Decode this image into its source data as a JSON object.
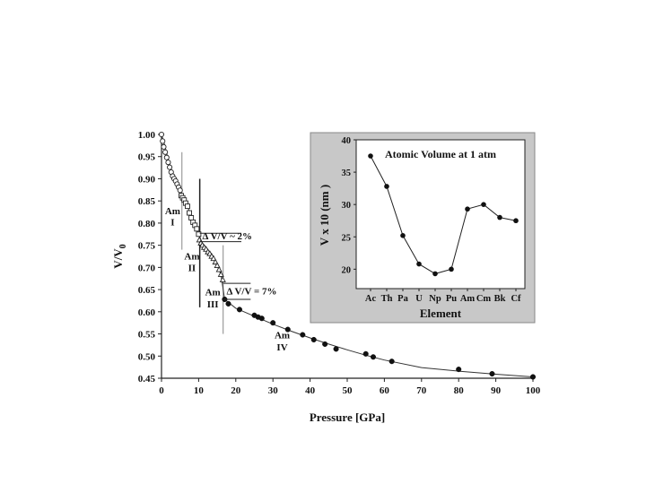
{
  "chart_data": [
    {
      "type": "scatter",
      "xlabel": "Pressure [GPa]",
      "ylabel_main": "V/V",
      "ylabel_sub": "0",
      "xlim": [
        0,
        100
      ],
      "ylim": [
        0.45,
        1.0
      ],
      "xticks": [
        "0",
        "10",
        "20",
        "30",
        "40",
        "50",
        "60",
        "70",
        "80",
        "90",
        "100"
      ],
      "yticks": [
        "0.45",
        "0.50",
        "0.55",
        "0.60",
        "0.65",
        "0.70",
        "0.75",
        "0.80",
        "0.85",
        "0.90",
        "0.95",
        "1.00"
      ],
      "series": [
        {
          "marker": "open-circle",
          "x": [
            0,
            0.3,
            0.6,
            1.0,
            1.4,
            1.8,
            2.2,
            2.6,
            3.0,
            3.4,
            3.8,
            4.2,
            4.6,
            5.0
          ],
          "y": [
            1.0,
            0.985,
            0.972,
            0.96,
            0.948,
            0.937,
            0.926,
            0.915,
            0.906,
            0.9,
            0.895,
            0.888,
            0.881,
            0.874
          ]
        },
        {
          "marker": "open-square",
          "x": [
            5.3,
            5.7,
            6.1,
            6.5,
            7.0,
            7.5,
            8.0,
            8.5,
            9.0,
            9.5,
            10.0
          ],
          "y": [
            0.862,
            0.857,
            0.852,
            0.845,
            0.838,
            0.823,
            0.812,
            0.802,
            0.795,
            0.787,
            0.775
          ]
        },
        {
          "marker": "open-triangle",
          "x": [
            10.2,
            10.6,
            11.0,
            11.5,
            12.0,
            12.5,
            13.0,
            13.5,
            14.0,
            14.5,
            15.0,
            15.5,
            16.0,
            16.5
          ],
          "y": [
            0.762,
            0.755,
            0.75,
            0.745,
            0.741,
            0.735,
            0.731,
            0.725,
            0.72,
            0.712,
            0.704,
            0.695,
            0.684,
            0.672
          ]
        },
        {
          "marker": "filled-circle",
          "x": [
            17.0,
            18.0,
            21.0,
            25.0,
            26.0,
            27.0,
            30.0,
            34.0,
            38.0,
            41.0,
            44.0,
            47.0,
            55.0,
            57.0,
            62.0,
            80.0,
            89.0,
            100.0
          ],
          "y": [
            0.628,
            0.618,
            0.605,
            0.592,
            0.588,
            0.585,
            0.575,
            0.56,
            0.548,
            0.537,
            0.527,
            0.516,
            0.505,
            0.498,
            0.488,
            0.47,
            0.46,
            0.453
          ]
        }
      ],
      "fit_curve": {
        "x": [
          0,
          1,
          2,
          3,
          4,
          5,
          6,
          7,
          8,
          9,
          10,
          11,
          12,
          13,
          14,
          15,
          16,
          17,
          20,
          25,
          30,
          35,
          40,
          45,
          50,
          55,
          60,
          70,
          80,
          90,
          100
        ],
        "y": [
          1.0,
          0.972,
          0.935,
          0.905,
          0.888,
          0.872,
          0.855,
          0.838,
          0.815,
          0.795,
          0.775,
          0.755,
          0.742,
          0.731,
          0.72,
          0.704,
          0.684,
          0.628,
          0.608,
          0.59,
          0.572,
          0.556,
          0.541,
          0.527,
          0.514,
          0.502,
          0.491,
          0.474,
          0.466,
          0.459,
          0.453
        ]
      },
      "annotations": {
        "am_i": [
          "Am",
          "I"
        ],
        "am_ii": [
          "Am",
          "II"
        ],
        "am_iii": [
          "Am",
          "III"
        ],
        "am_iv": [
          "Am",
          "IV"
        ],
        "delta_1": "Δ V/V ~ 2%",
        "delta_2": "Δ V/V = 7%"
      }
    },
    {
      "type": "line",
      "title": "Atomic Volume at 1 atm",
      "xlabel": "Element",
      "ylabel": "V x 10 (nm )",
      "categories": [
        "Ac",
        "Th",
        "Pa",
        "U",
        "Np",
        "Pu",
        "Am",
        "Cm",
        "Bk",
        "Cf"
      ],
      "values": [
        37.5,
        32.8,
        25.2,
        20.8,
        19.3,
        20.0,
        29.3,
        30.0,
        28.0,
        27.5
      ],
      "ylim": [
        17,
        40
      ],
      "yticks": [
        "20",
        "25",
        "30",
        "35",
        "40"
      ],
      "background": "#c8c8c8"
    }
  ]
}
